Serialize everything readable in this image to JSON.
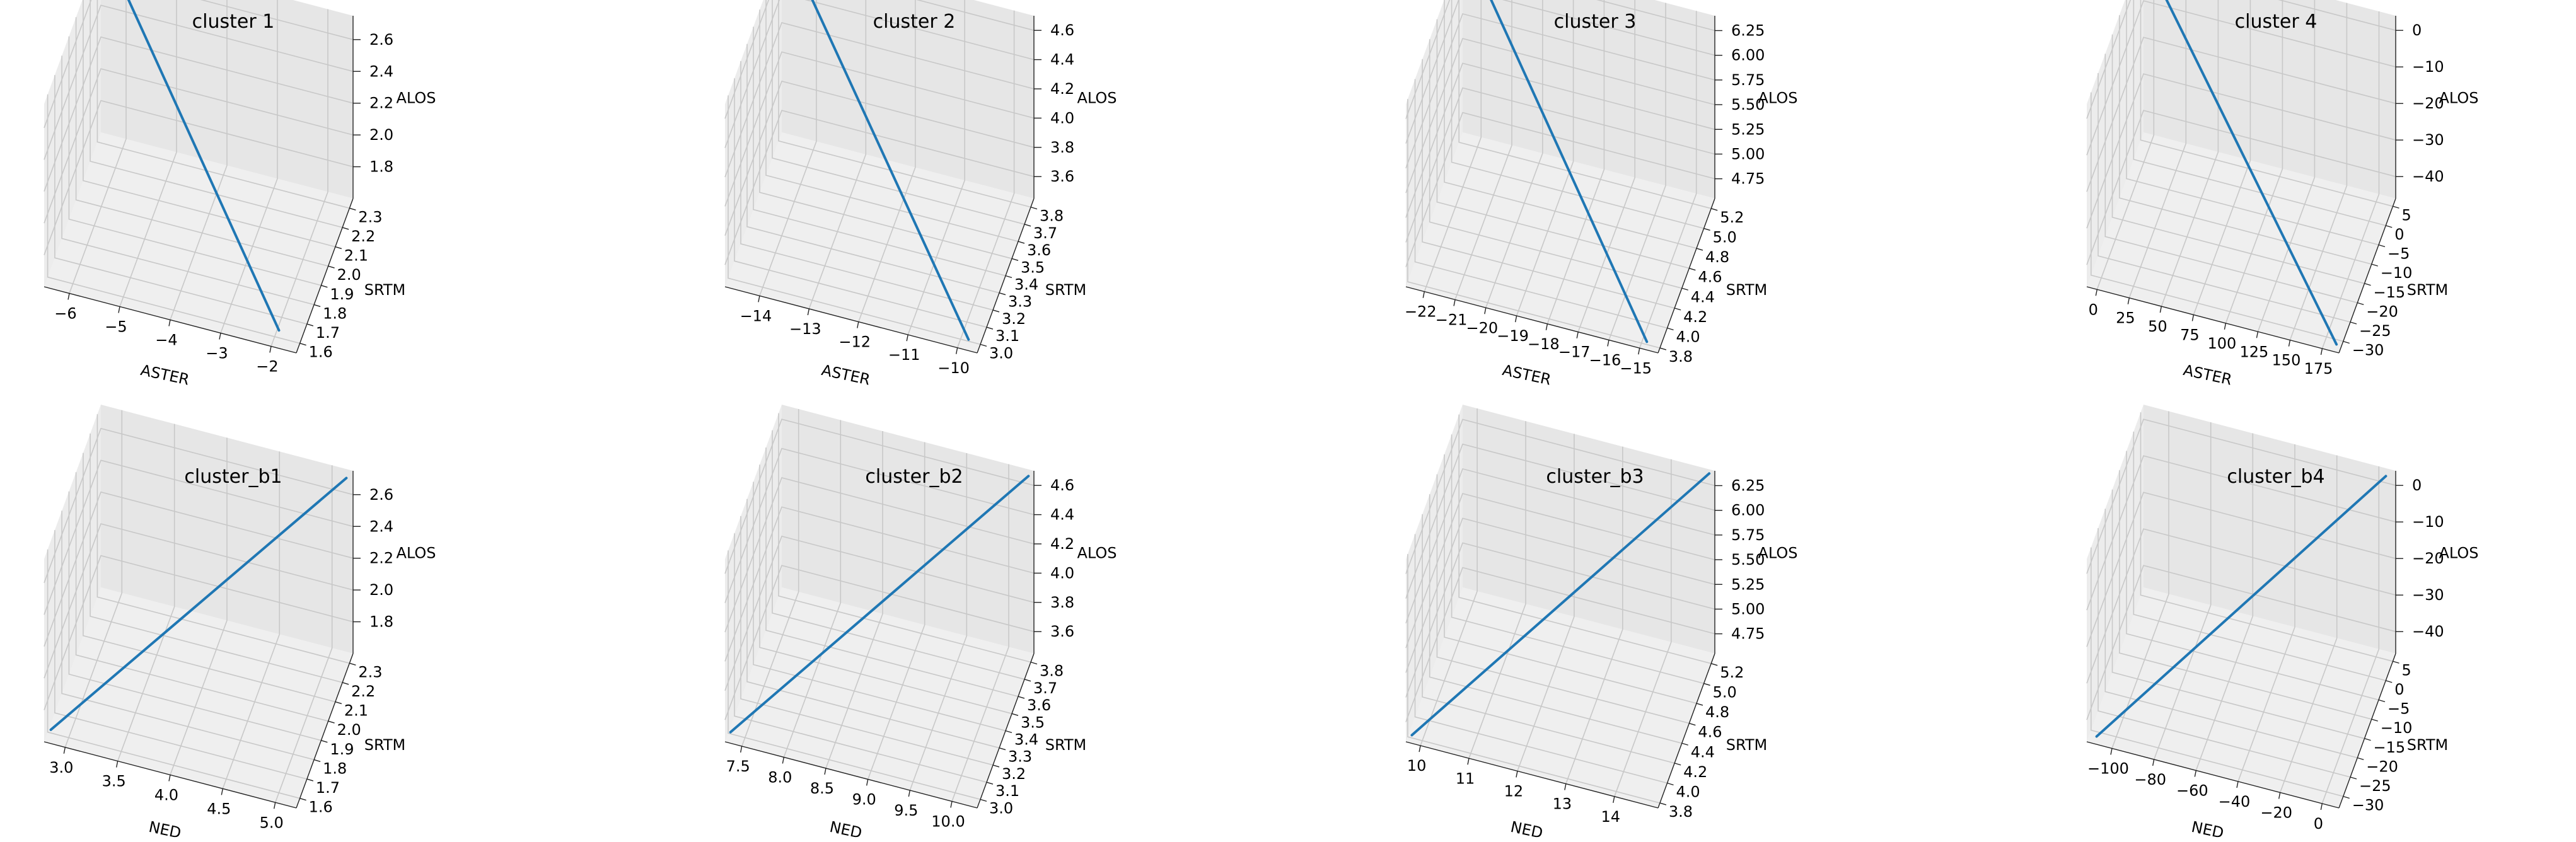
{
  "chart_data": [
    {
      "type": "line3d",
      "title": "cluster 1",
      "xlabel": "ASTER",
      "ylabel": "SRTM",
      "zlabel": "ALOS",
      "xticks": [
        "−6",
        "−5",
        "−4",
        "−3",
        "−2"
      ],
      "yticks": [
        "1.6",
        "1.7",
        "1.8",
        "1.9",
        "2.0",
        "2.1",
        "2.2",
        "2.3"
      ],
      "zticks": [
        "1.8",
        "2.0",
        "2.2",
        "2.4",
        "2.6"
      ],
      "xlim": [
        -6.5,
        -1.5
      ],
      "ylim": [
        1.55,
        2.35
      ],
      "zlim": [
        1.6,
        2.75
      ],
      "series": [
        {
          "x": [
            -6.2,
            -1.9
          ],
          "y": [
            2.31,
            1.59
          ],
          "z": [
            2.72,
            1.66
          ]
        }
      ],
      "line_color": "#1f77b4"
    },
    {
      "type": "line3d",
      "title": "cluster 2",
      "xlabel": "ASTER",
      "ylabel": "SRTM",
      "zlabel": "ALOS",
      "xticks": [
        "−14",
        "−13",
        "−12",
        "−11",
        "−10"
      ],
      "yticks": [
        "3.0",
        "3.1",
        "3.2",
        "3.3",
        "3.4",
        "3.5",
        "3.6",
        "3.7",
        "3.8"
      ],
      "zticks": [
        "3.6",
        "3.8",
        "4.0",
        "4.2",
        "4.4",
        "4.6"
      ],
      "xlim": [
        -14.7,
        -9.6
      ],
      "ylim": [
        2.95,
        3.85
      ],
      "zlim": [
        3.45,
        4.7
      ],
      "series": [
        {
          "x": [
            -14.4,
            -9.8
          ],
          "y": [
            3.82,
            2.97
          ],
          "z": [
            4.68,
            3.5
          ]
        }
      ],
      "line_color": "#1f77b4"
    },
    {
      "type": "line3d",
      "title": "cluster 3",
      "xlabel": "ASTER",
      "ylabel": "SRTM",
      "zlabel": "ALOS",
      "xticks": [
        "−22",
        "−21",
        "−20",
        "−19",
        "−18",
        "−17",
        "−16",
        "−15"
      ],
      "yticks": [
        "3.8",
        "4.0",
        "4.2",
        "4.4",
        "4.6",
        "4.8",
        "5.0",
        "5.2"
      ],
      "zticks": [
        "4.75",
        "5.00",
        "5.25",
        "5.50",
        "5.75",
        "6.00",
        "6.25"
      ],
      "xlim": [
        -22.6,
        -14.4
      ],
      "ylim": [
        3.75,
        5.3
      ],
      "zlim": [
        4.55,
        6.4
      ],
      "series": [
        {
          "x": [
            -22.3,
            -14.8
          ],
          "y": [
            5.28,
            3.78
          ],
          "z": [
            6.38,
            4.6
          ]
        }
      ],
      "line_color": "#1f77b4"
    },
    {
      "type": "line3d",
      "title": "cluster 4",
      "xlabel": "ASTER",
      "ylabel": "SRTM",
      "zlabel": "ALOS",
      "xticks": [
        "0",
        "25",
        "50",
        "75",
        "100",
        "125",
        "150",
        "175"
      ],
      "yticks": [
        "−30",
        "−25",
        "−20",
        "−15",
        "−10",
        "−5",
        "0",
        "5"
      ],
      "zticks": [
        "−40",
        "−30",
        "−20",
        "−10",
        "0"
      ],
      "xlim": [
        -8,
        188
      ],
      "ylim": [
        -33,
        7
      ],
      "zlim": [
        -46,
        4
      ],
      "series": [
        {
          "x": [
            -5,
            185
          ],
          "y": [
            6,
            -32
          ],
          "z": [
            3,
            -45
          ]
        }
      ],
      "line_color": "#1f77b4"
    },
    {
      "type": "line3d",
      "title": "cluster_b1",
      "xlabel": "NED",
      "ylabel": "SRTM",
      "zlabel": "ALOS",
      "xticks": [
        "3.0",
        "3.5",
        "4.0",
        "4.5",
        "5.0"
      ],
      "yticks": [
        "1.6",
        "1.7",
        "1.8",
        "1.9",
        "2.0",
        "2.1",
        "2.2",
        "2.3"
      ],
      "zticks": [
        "1.8",
        "2.0",
        "2.2",
        "2.4",
        "2.6"
      ],
      "xlim": [
        2.8,
        5.2
      ],
      "ylim": [
        1.55,
        2.35
      ],
      "zlim": [
        1.6,
        2.75
      ],
      "series": [
        {
          "x": [
            2.85,
            5.15
          ],
          "y": [
            1.57,
            2.33
          ],
          "z": [
            1.66,
            2.72
          ]
        }
      ],
      "line_color": "#1f77b4"
    },
    {
      "type": "line3d",
      "title": "cluster_b2",
      "xlabel": "NED",
      "ylabel": "SRTM",
      "zlabel": "ALOS",
      "xticks": [
        "7.5",
        "8.0",
        "8.5",
        "9.0",
        "9.5",
        "10.0"
      ],
      "yticks": [
        "3.0",
        "3.1",
        "3.2",
        "3.3",
        "3.4",
        "3.5",
        "3.6",
        "3.7",
        "3.8"
      ],
      "zticks": [
        "3.6",
        "3.8",
        "4.0",
        "4.2",
        "4.4",
        "4.6"
      ],
      "xlim": [
        7.3,
        10.3
      ],
      "ylim": [
        2.95,
        3.85
      ],
      "zlim": [
        3.45,
        4.7
      ],
      "series": [
        {
          "x": [
            7.35,
            10.25
          ],
          "y": [
            2.97,
            3.83
          ],
          "z": [
            3.5,
            4.68
          ]
        }
      ],
      "line_color": "#1f77b4"
    },
    {
      "type": "line3d",
      "title": "cluster_b3",
      "xlabel": "NED",
      "ylabel": "SRTM",
      "zlabel": "ALOS",
      "xticks": [
        "10",
        "11",
        "12",
        "13",
        "14"
      ],
      "yticks": [
        "3.8",
        "4.0",
        "4.2",
        "4.4",
        "4.6",
        "4.8",
        "5.0",
        "5.2"
      ],
      "zticks": [
        "4.75",
        "5.00",
        "5.25",
        "5.50",
        "5.75",
        "6.00",
        "6.25"
      ],
      "xlim": [
        9.7,
        14.9
      ],
      "ylim": [
        3.75,
        5.3
      ],
      "zlim": [
        4.55,
        6.4
      ],
      "series": [
        {
          "x": [
            9.8,
            14.8
          ],
          "y": [
            3.78,
            5.28
          ],
          "z": [
            4.6,
            6.38
          ]
        }
      ],
      "line_color": "#1f77b4"
    },
    {
      "type": "line3d",
      "title": "cluster_b4",
      "xlabel": "NED",
      "ylabel": "SRTM",
      "zlabel": "ALOS",
      "xticks": [
        "−100",
        "−80",
        "−60",
        "−40",
        "−20",
        "0"
      ],
      "yticks": [
        "−30",
        "−25",
        "−20",
        "−15",
        "−10",
        "−5",
        "0",
        "5"
      ],
      "zticks": [
        "−40",
        "−30",
        "−20",
        "−10",
        "0"
      ],
      "xlim": [
        -112,
        8
      ],
      "ylim": [
        -33,
        7
      ],
      "zlim": [
        -46,
        4
      ],
      "series": [
        {
          "x": [
            -108,
            4
          ],
          "y": [
            -32,
            6
          ],
          "z": [
            -45,
            3
          ]
        }
      ],
      "line_color": "#1f77b4"
    }
  ]
}
